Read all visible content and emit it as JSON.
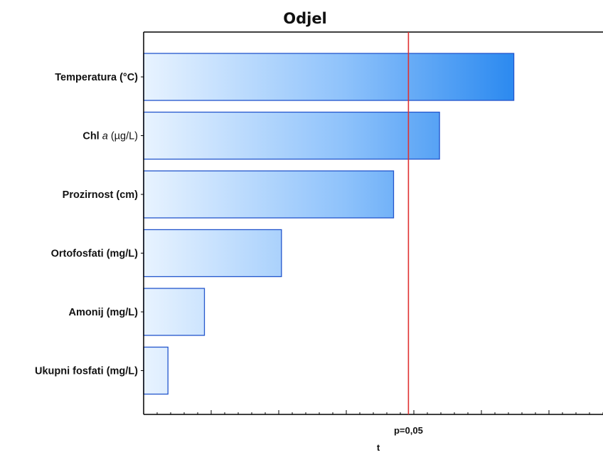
{
  "chart_data": {
    "type": "bar",
    "orientation": "horizontal",
    "title": "Odjel",
    "xlabel": "t",
    "ylabel": "",
    "categories": [
      "Temperatura (°C)",
      "Chl a (µg/L)",
      "Prozirnost  (cm)",
      "Ortofosfati (mg/L)",
      "Amonij (mg/L)",
      "Ukupni fosfati (mg/L)"
    ],
    "values": [
      2.74,
      2.19,
      1.85,
      1.02,
      0.45,
      0.18
    ],
    "xlim": [
      0,
      3.4
    ],
    "reference_line": {
      "label": "p=0,05",
      "value": 1.96,
      "color": "#e03030"
    },
    "grid": false,
    "legend": "none",
    "colors": {
      "bar_light": "#e8f3ff",
      "bar_dark": "#2e8bf0",
      "bar_stroke": "#2255cc",
      "axis": "#000000"
    }
  }
}
